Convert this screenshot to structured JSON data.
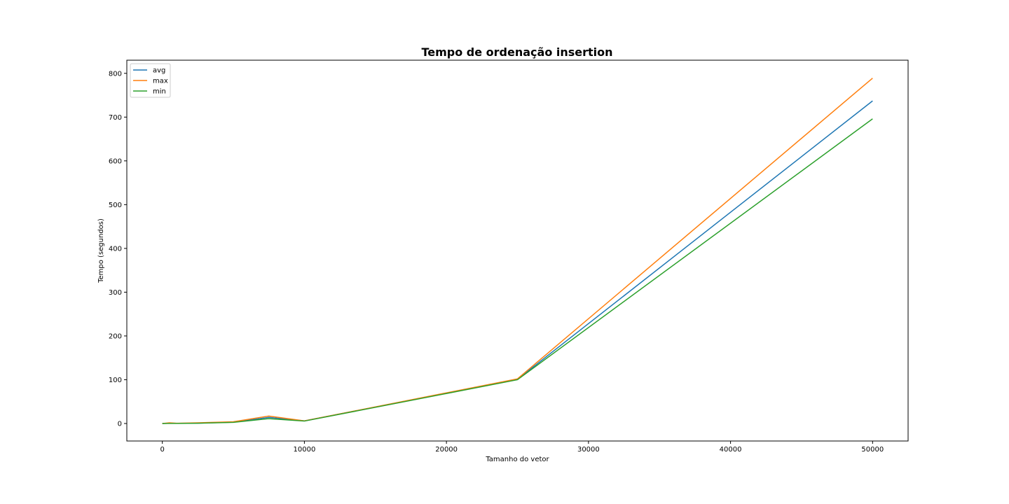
{
  "chart_data": {
    "type": "line",
    "title": "Tempo de ordenação insertion",
    "xlabel": "Tamanho do vetor",
    "ylabel": "Tempo (segundos)",
    "xlim": [
      -2500,
      52500
    ],
    "ylim": [
      -40,
      830
    ],
    "xticks": [
      0,
      10000,
      20000,
      30000,
      40000,
      50000
    ],
    "yticks": [
      0,
      100,
      200,
      300,
      400,
      500,
      600,
      700,
      800
    ],
    "grid": false,
    "legend_position": "upper-left",
    "x": [
      0,
      500,
      1000,
      2500,
      5000,
      7500,
      10000,
      25000,
      50000
    ],
    "series": [
      {
        "name": "avg",
        "color": "#1f77b4",
        "values": [
          0,
          0.5,
          0.3,
          0.8,
          3,
          14,
          6,
          101,
          737
        ]
      },
      {
        "name": "max",
        "color": "#ff7f0e",
        "values": [
          0,
          1.5,
          0.5,
          1.5,
          4,
          17,
          6,
          102,
          789
        ]
      },
      {
        "name": "min",
        "color": "#2ca02c",
        "values": [
          0,
          0.2,
          0.2,
          0.5,
          2.5,
          11,
          5.5,
          100,
          696
        ]
      }
    ]
  }
}
